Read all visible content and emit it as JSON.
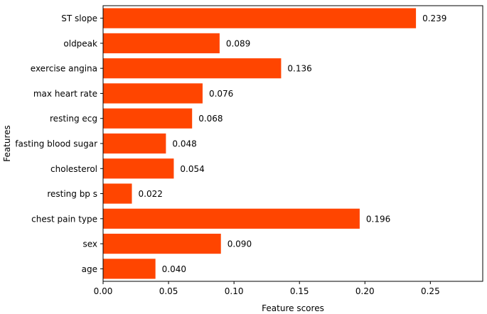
{
  "chart_data": {
    "type": "bar",
    "orientation": "horizontal",
    "title": "",
    "xlabel": "Feature scores",
    "ylabel": "Features",
    "xlim": [
      0,
      0.29
    ],
    "x_ticks": [
      "0.00",
      "0.05",
      "0.10",
      "0.15",
      "0.20",
      "0.25"
    ],
    "x_tick_values": [
      0,
      0.05,
      0.1,
      0.15,
      0.2,
      0.25
    ],
    "categories": [
      "ST slope",
      "oldpeak",
      "exercise angina",
      "max heart rate",
      "resting ecg",
      "fasting blood sugar",
      "cholesterol",
      "resting bp s",
      "chest pain type",
      "sex",
      "age"
    ],
    "values": [
      0.239,
      0.089,
      0.136,
      0.076,
      0.068,
      0.048,
      0.054,
      0.022,
      0.196,
      0.09,
      0.04
    ],
    "value_labels": [
      "0.239",
      "0.089",
      "0.136",
      "0.076",
      "0.068",
      "0.048",
      "0.054",
      "0.022",
      "0.196",
      "0.090",
      "0.040"
    ],
    "bar_color": "#ff4500",
    "grid": false,
    "legend": "none"
  }
}
